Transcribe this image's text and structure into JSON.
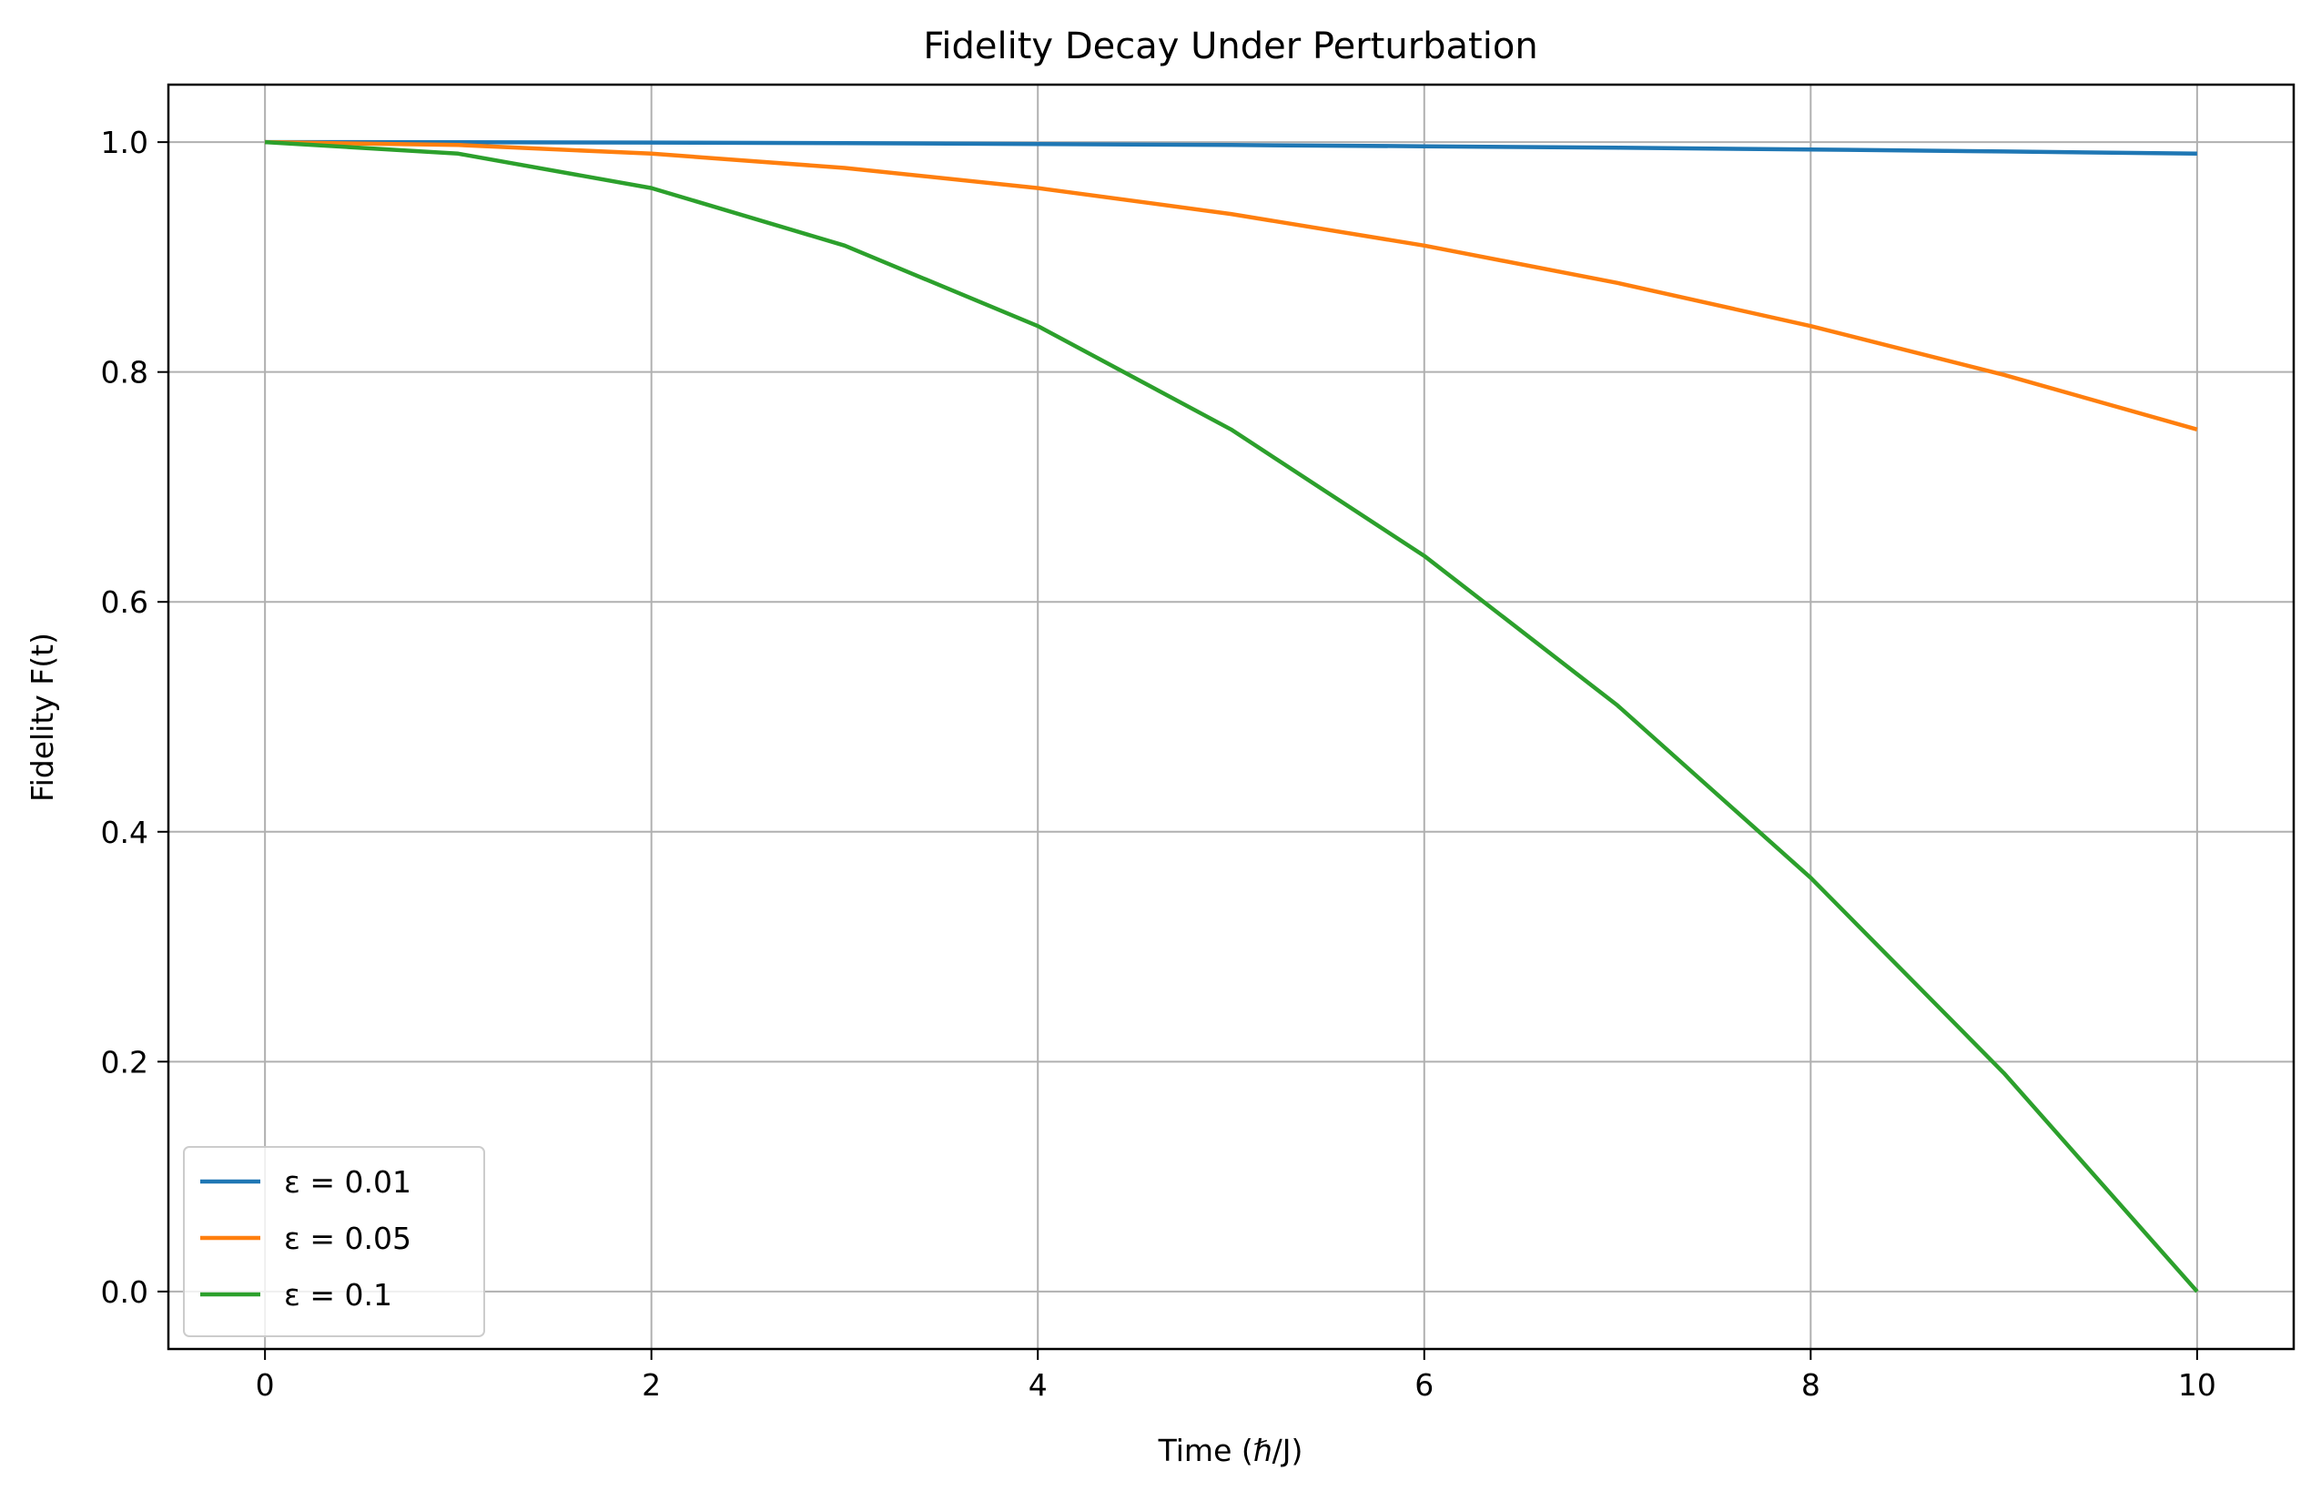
{
  "chart_data": {
    "type": "line",
    "title": "Fidelity Decay Under Perturbation",
    "xlabel": "Time (ℏ/J)",
    "ylabel": "Fidelity F(t)",
    "xlim": [
      -0.5,
      10.5
    ],
    "ylim": [
      -0.05,
      1.05
    ],
    "xticks": [
      0,
      2,
      4,
      6,
      8,
      10
    ],
    "yticks": [
      0.0,
      0.2,
      0.4,
      0.6,
      0.8,
      1.0
    ],
    "xtick_labels": [
      "0",
      "2",
      "4",
      "6",
      "8",
      "10"
    ],
    "ytick_labels": [
      "0.0",
      "0.2",
      "0.4",
      "0.6",
      "0.8",
      "1.0"
    ],
    "grid": true,
    "legend_position": "lower-left",
    "x": [
      0,
      1,
      2,
      3,
      4,
      5,
      6,
      7,
      8,
      9,
      10
    ],
    "series": [
      {
        "name": "ε = 0.01",
        "color": "#1f77b4",
        "values": [
          1.0,
          0.9999,
          0.9996,
          0.9991,
          0.9984,
          0.9975,
          0.9964,
          0.9951,
          0.9936,
          0.9919,
          0.99
        ]
      },
      {
        "name": "ε = 0.05",
        "color": "#ff7f0e",
        "values": [
          1.0,
          0.9975,
          0.99,
          0.9775,
          0.96,
          0.9375,
          0.91,
          0.8775,
          0.84,
          0.7975,
          0.75
        ]
      },
      {
        "name": "ε = 0.1",
        "color": "#2ca02c",
        "values": [
          1.0,
          0.99,
          0.96,
          0.91,
          0.84,
          0.75,
          0.64,
          0.51,
          0.36,
          0.19,
          0.0
        ]
      }
    ]
  }
}
